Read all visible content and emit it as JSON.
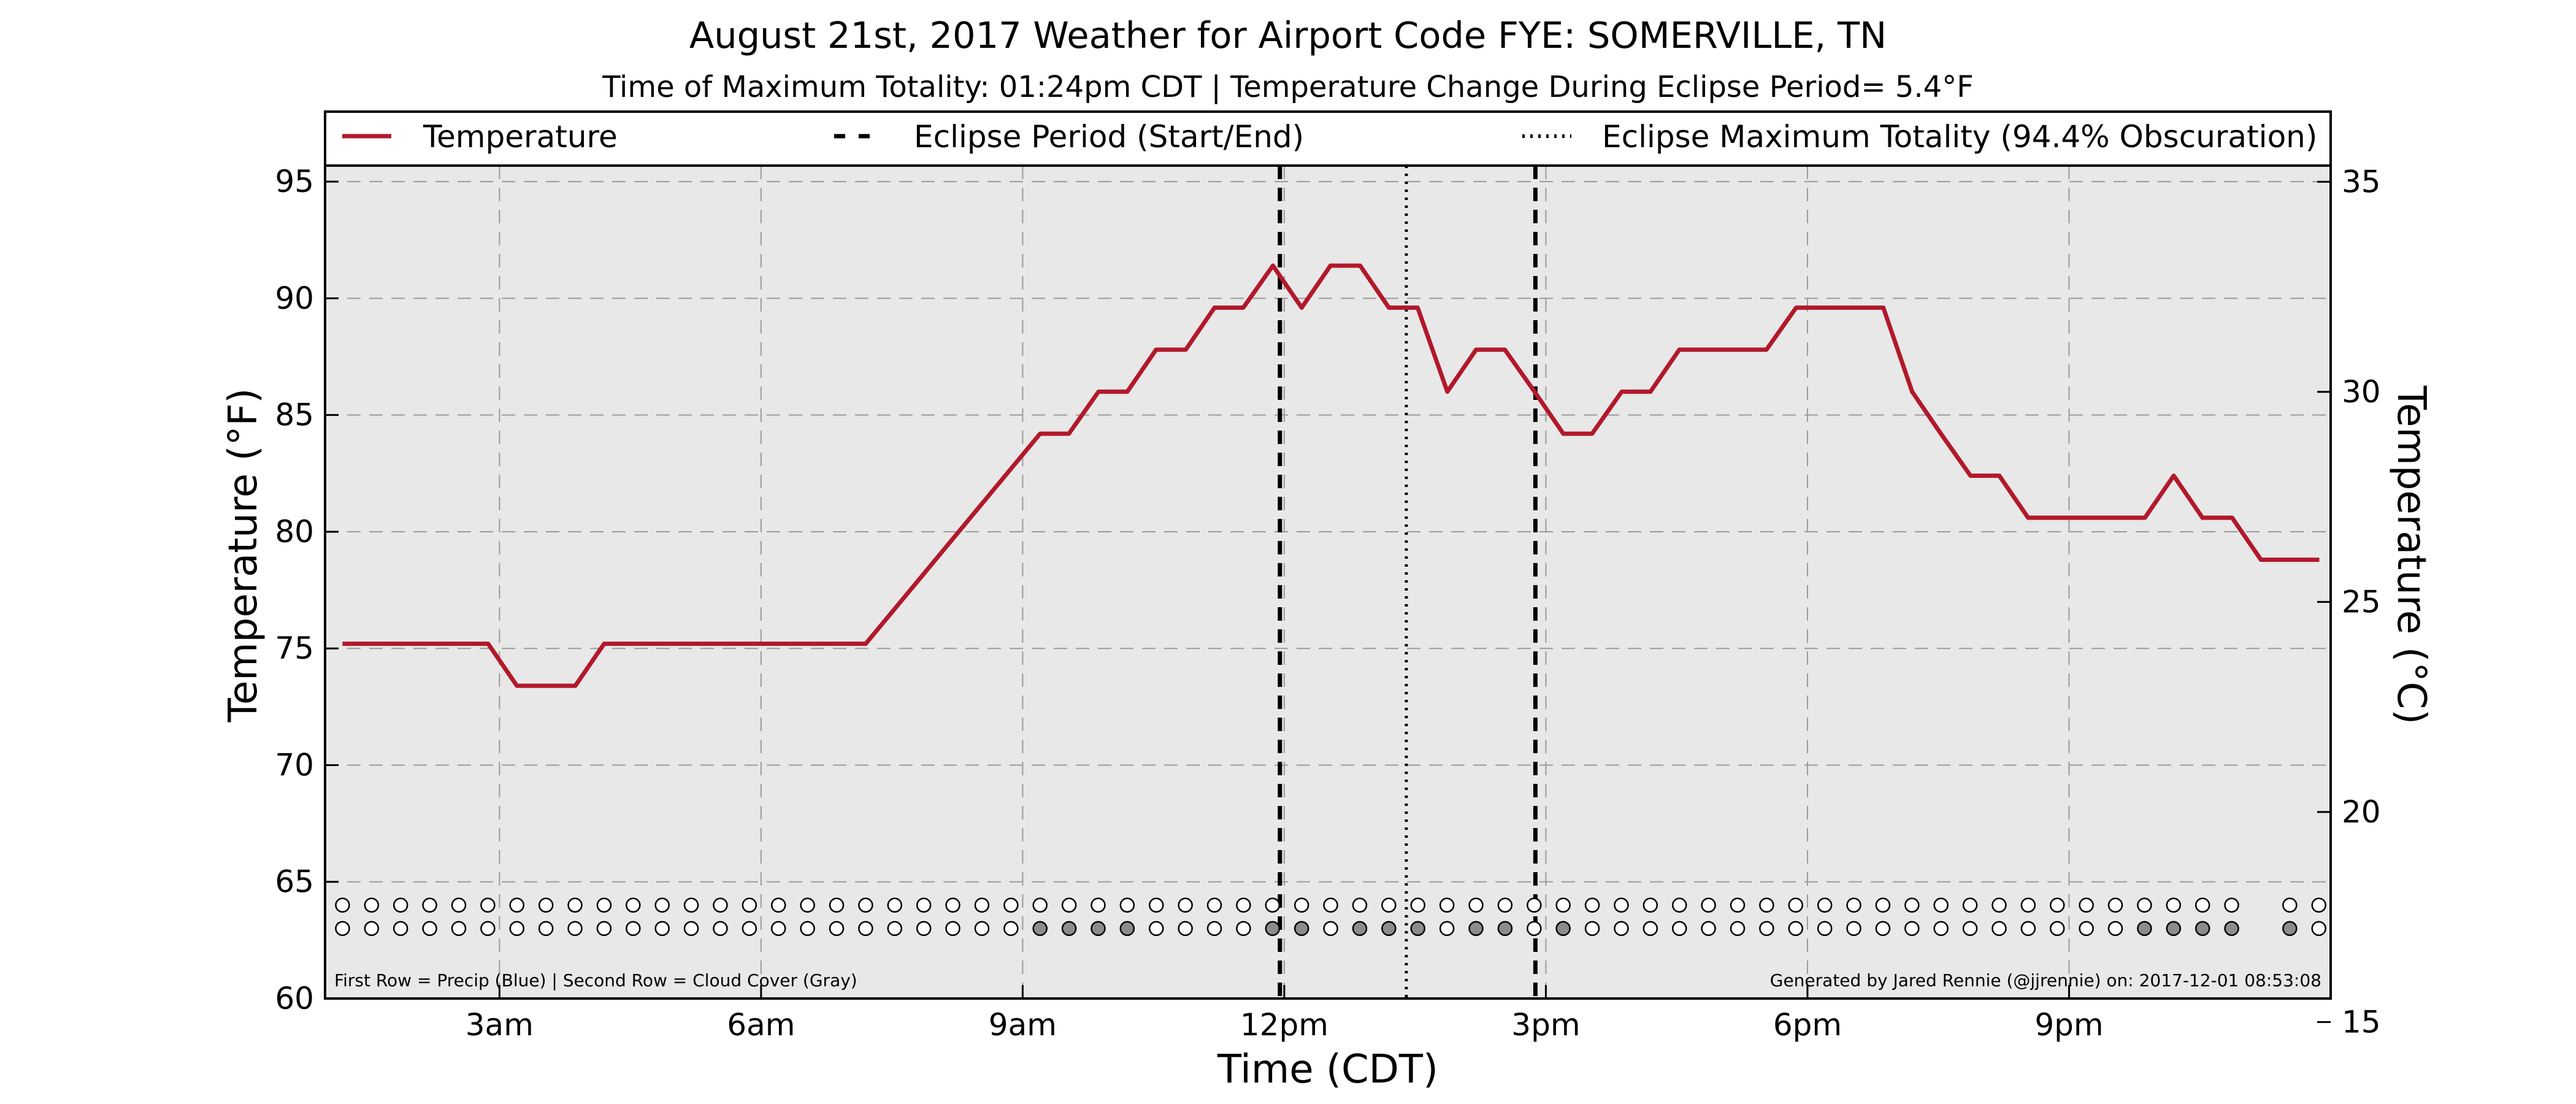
{
  "chart_data": {
    "type": "line",
    "title": "August 21st, 2017 Weather for Airport Code FYE: SOMERVILLE, TN",
    "subtitle": "Time of Maximum Totality: 01:24pm CDT | Temperature Change During Eclipse Period= 5.4°F",
    "xlabel": "Time (CDT)",
    "ylabel": "Temperature (°F)",
    "ylabel_right": "Temperature (°C)",
    "xlim": [
      1.0,
      24.0
    ],
    "ylim": [
      60,
      98
    ],
    "ylim_right": [
      15.56,
      36.67
    ],
    "x_ticks": [
      {
        "x": 3,
        "label": "3am"
      },
      {
        "x": 6,
        "label": "6am"
      },
      {
        "x": 9,
        "label": "9am"
      },
      {
        "x": 12,
        "label": "12pm"
      },
      {
        "x": 15,
        "label": "3pm"
      },
      {
        "x": 18,
        "label": "6pm"
      },
      {
        "x": 21,
        "label": "9pm"
      }
    ],
    "y_ticks": [
      60,
      65,
      70,
      75,
      80,
      85,
      90,
      95
    ],
    "y_ticks_right": [
      15,
      20,
      25,
      30,
      35
    ],
    "grid": true,
    "legend_position": "top",
    "legend": [
      {
        "label": "Temperature",
        "style": "solid"
      },
      {
        "label": "Eclipse Period (Start/End)",
        "style": "dashed"
      },
      {
        "label": "Eclipse Maximum Totality (94.4% Obscuration)",
        "style": "dotted"
      }
    ],
    "series": [
      {
        "name": "Temperature",
        "color": "#b2182b",
        "x": [
          1.2,
          2.87,
          3.2,
          3.87,
          4.2,
          7.2,
          9.2,
          9.53,
          9.87,
          10.2,
          10.53,
          10.87,
          11.2,
          11.53,
          11.87,
          12.2,
          12.53,
          12.87,
          13.2,
          13.53,
          13.87,
          14.2,
          14.53,
          14.87,
          15.2,
          15.53,
          15.87,
          16.2,
          16.53,
          17.2,
          17.53,
          17.87,
          18.2,
          18.53,
          18.87,
          19.2,
          19.53,
          19.87,
          20.2,
          20.53,
          20.87,
          21.2,
          21.53,
          21.87,
          22.2,
          22.53,
          22.87,
          23.2,
          23.53,
          23.87
        ],
        "values": [
          75.2,
          75.2,
          73.4,
          73.4,
          75.2,
          75.2,
          84.2,
          84.2,
          86.0,
          86.0,
          87.8,
          87.8,
          89.6,
          89.6,
          91.4,
          89.6,
          91.4,
          91.4,
          89.6,
          89.6,
          86.0,
          87.8,
          87.8,
          86.0,
          84.2,
          84.2,
          86.0,
          86.0,
          87.8,
          87.8,
          87.8,
          89.6,
          89.6,
          89.6,
          89.6,
          86.0,
          84.2,
          82.4,
          82.4,
          80.6,
          80.6,
          80.6,
          80.6,
          80.6,
          82.4,
          80.6,
          80.6,
          78.8,
          78.8,
          78.8
        ]
      }
    ],
    "eclipse_start": 11.95,
    "eclipse_end": 14.88,
    "eclipse_max": 13.4,
    "precip_row": {
      "y": 64.0,
      "x_start": 1.2,
      "x_step": 0.3333,
      "count": 69,
      "blank_indices": [
        66
      ],
      "filled_indices": []
    },
    "cloud_row": {
      "y": 63.0,
      "x_start": 1.2,
      "x_step": 0.3333,
      "count": 69,
      "blank_indices": [
        66
      ],
      "filled_indices": [
        24,
        25,
        26,
        27,
        32,
        33,
        35,
        36,
        37,
        39,
        40,
        42,
        62,
        63,
        64,
        65,
        67
      ]
    },
    "row_note": "First Row = Precip (Blue) | Second Row = Cloud Cover (Gray)",
    "credit": "Generated by Jared Rennie (@jjrennie) on: 2017-12-01 08:53:08"
  }
}
